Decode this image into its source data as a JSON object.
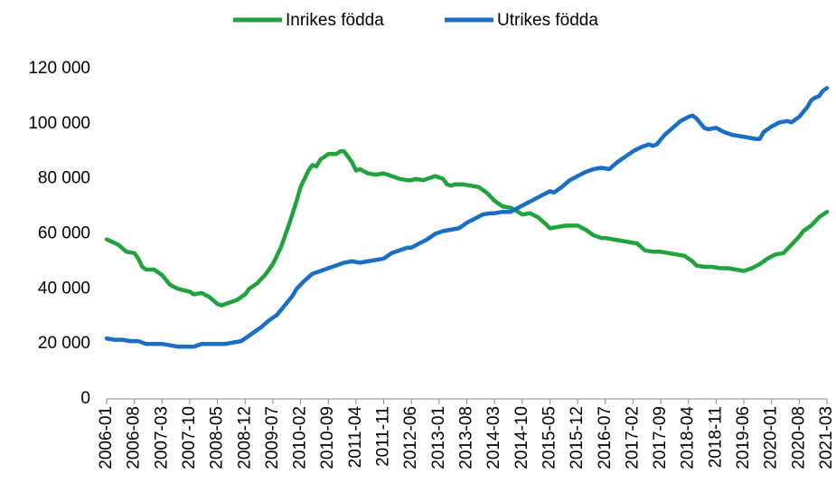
{
  "chart_data": {
    "type": "line",
    "xlim": [
      "2006-01",
      "2021-03"
    ],
    "xticks": [
      "2006-01",
      "2006-08",
      "2007-03",
      "2007-10",
      "2008-05",
      "2008-12",
      "2009-07",
      "2010-02",
      "2010-09",
      "2011-04",
      "2011-11",
      "2012-06",
      "2013-01",
      "2013-08",
      "2014-03",
      "2014-10",
      "2015-05",
      "2015-12",
      "2016-07",
      "2017-02",
      "2017-09",
      "2018-04",
      "2018-11",
      "2019-06",
      "2020-01",
      "2020-08",
      "2021-03"
    ],
    "ylim": [
      0,
      120000
    ],
    "yticks": [
      0,
      {
        "value": 20000,
        "label": "20 000"
      },
      {
        "value": 40000,
        "label": "40 000"
      },
      {
        "value": 60000,
        "label": "60 000"
      },
      {
        "value": 80000,
        "label": "80 000"
      },
      {
        "value": 100000,
        "label": "100 000"
      },
      {
        "value": 120000,
        "label": "120 000"
      }
    ],
    "grid": false,
    "legend": "top",
    "series": [
      {
        "name": "Inrikes födda",
        "color": "#20a33c",
        "x": [
          "2006-01",
          "2006-04",
          "2006-06",
          "2006-08",
          "2006-09",
          "2006-10",
          "2006-11",
          "2007-01",
          "2007-03",
          "2007-05",
          "2007-07",
          "2007-10",
          "2007-11",
          "2008-01",
          "2008-03",
          "2008-05",
          "2008-06",
          "2008-08",
          "2008-10",
          "2008-12",
          "2009-01",
          "2009-03",
          "2009-05",
          "2009-07",
          "2009-09",
          "2009-11",
          "2010-01",
          "2010-02",
          "2010-04",
          "2010-05",
          "2010-06",
          "2010-07",
          "2010-09",
          "2010-11",
          "2010-12",
          "2011-01",
          "2011-02",
          "2011-03",
          "2011-04",
          "2011-05",
          "2011-07",
          "2011-09",
          "2011-11",
          "2012-01",
          "2012-03",
          "2012-05",
          "2012-06",
          "2012-07",
          "2012-09",
          "2012-11",
          "2012-12",
          "2013-02",
          "2013-03",
          "2013-04",
          "2013-05",
          "2013-07",
          "2013-09",
          "2013-11",
          "2014-01",
          "2014-03",
          "2014-05",
          "2014-07",
          "2014-09",
          "2014-10",
          "2014-12",
          "2015-02",
          "2015-04",
          "2015-05",
          "2015-07",
          "2015-09",
          "2015-11",
          "2015-12",
          "2016-02",
          "2016-04",
          "2016-06",
          "2016-07",
          "2016-09",
          "2016-11",
          "2017-01",
          "2017-03",
          "2017-05",
          "2017-07",
          "2017-09",
          "2017-11",
          "2018-01",
          "2018-03",
          "2018-05",
          "2018-06",
          "2018-08",
          "2018-10",
          "2018-12",
          "2019-02",
          "2019-04",
          "2019-06",
          "2019-08",
          "2019-10",
          "2019-12",
          "2020-02",
          "2020-04",
          "2020-06",
          "2020-08",
          "2020-09",
          "2020-11",
          "2021-01",
          "2021-02",
          "2021-03"
        ],
        "values": [
          58000,
          56000,
          53500,
          53000,
          51000,
          48000,
          47000,
          47000,
          45000,
          41500,
          40000,
          39000,
          38000,
          38500,
          37000,
          34500,
          34000,
          35000,
          36000,
          38000,
          40000,
          42000,
          45000,
          49000,
          55000,
          63000,
          72000,
          77000,
          83000,
          85000,
          84500,
          87000,
          89000,
          89000,
          90000,
          90000,
          88000,
          86000,
          83000,
          83500,
          82000,
          81500,
          82000,
          81000,
          80000,
          79500,
          79500,
          80000,
          79500,
          80500,
          81000,
          80000,
          78000,
          77500,
          78000,
          78000,
          77500,
          77000,
          75000,
          72000,
          70000,
          69500,
          68000,
          67000,
          67500,
          66000,
          63500,
          62000,
          62500,
          63000,
          63000,
          63000,
          61500,
          59500,
          58500,
          58500,
          58000,
          57500,
          57000,
          56500,
          54000,
          53500,
          53500,
          53000,
          52500,
          52000,
          50000,
          48500,
          48000,
          48000,
          47500,
          47500,
          47000,
          46500,
          47500,
          49000,
          51000,
          52500,
          53000,
          56000,
          59000,
          61000,
          63000,
          66000,
          67000,
          68000
        ]
      },
      {
        "name": "Utrikes födda",
        "color": "#1a6fc4",
        "x": [
          "2006-01",
          "2006-03",
          "2006-05",
          "2006-07",
          "2006-09",
          "2006-11",
          "2007-01",
          "2007-03",
          "2007-05",
          "2007-07",
          "2007-09",
          "2007-11",
          "2008-01",
          "2008-03",
          "2008-05",
          "2008-07",
          "2008-09",
          "2008-11",
          "2008-12",
          "2009-02",
          "2009-04",
          "2009-06",
          "2009-08",
          "2009-10",
          "2009-12",
          "2010-01",
          "2010-03",
          "2010-05",
          "2010-07",
          "2010-09",
          "2010-11",
          "2011-01",
          "2011-03",
          "2011-05",
          "2011-07",
          "2011-09",
          "2011-11",
          "2012-01",
          "2012-03",
          "2012-05",
          "2012-06",
          "2012-08",
          "2012-10",
          "2012-12",
          "2013-02",
          "2013-04",
          "2013-06",
          "2013-08",
          "2013-10",
          "2013-12",
          "2014-02",
          "2014-03",
          "2014-05",
          "2014-07",
          "2014-09",
          "2014-11",
          "2015-01",
          "2015-03",
          "2015-05",
          "2015-06",
          "2015-08",
          "2015-10",
          "2015-12",
          "2016-02",
          "2016-04",
          "2016-06",
          "2016-08",
          "2016-10",
          "2016-12",
          "2017-02",
          "2017-04",
          "2017-06",
          "2017-07",
          "2017-08",
          "2017-10",
          "2017-12",
          "2018-02",
          "2018-04",
          "2018-05",
          "2018-06",
          "2018-08",
          "2018-09",
          "2018-11",
          "2019-01",
          "2019-03",
          "2019-05",
          "2019-07",
          "2019-09",
          "2019-10",
          "2019-11",
          "2020-01",
          "2020-03",
          "2020-05",
          "2020-06",
          "2020-08",
          "2020-10",
          "2020-11",
          "2020-12",
          "2021-01",
          "2021-02",
          "2021-03"
        ],
        "values": [
          22000,
          21500,
          21500,
          21000,
          21000,
          20000,
          20000,
          20000,
          19500,
          19000,
          19000,
          19000,
          20000,
          20000,
          20000,
          20000,
          20500,
          21000,
          22000,
          24000,
          26000,
          28500,
          30500,
          34000,
          37500,
          40000,
          43000,
          45500,
          46500,
          47500,
          48500,
          49500,
          50000,
          49500,
          50000,
          50500,
          51000,
          53000,
          54000,
          55000,
          55000,
          56500,
          58000,
          60000,
          61000,
          61500,
          62000,
          64000,
          65500,
          67000,
          67500,
          67500,
          68000,
          68000,
          69500,
          71000,
          72500,
          74000,
          75500,
          75000,
          77000,
          79500,
          81000,
          82500,
          83500,
          84000,
          83500,
          86000,
          88000,
          90000,
          91500,
          92500,
          92000,
          92500,
          96000,
          98500,
          101000,
          102500,
          103000,
          102000,
          98500,
          98000,
          98500,
          97000,
          96000,
          95500,
          95000,
          94500,
          94500,
          97000,
          99000,
          100500,
          101000,
          100500,
          102500,
          106000,
          108500,
          109500,
          110000,
          112000,
          113000
        ]
      }
    ]
  }
}
